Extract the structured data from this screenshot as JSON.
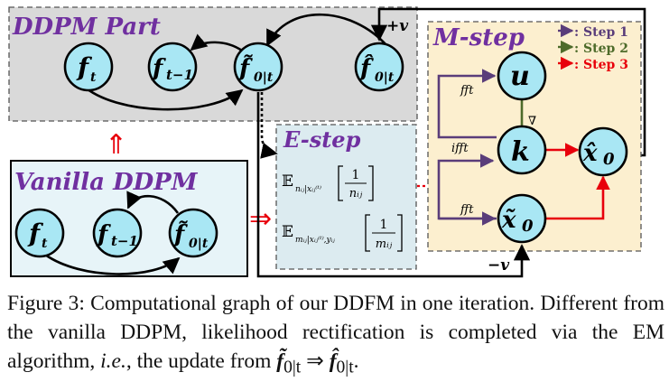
{
  "colors": {
    "node_fill": "#a9e7f4",
    "ddpm_box_fill": "#d9d9d9",
    "vanilla_box_fill": "#e7f4f8",
    "estep_box_fill": "#dcebf0",
    "mstep_box_fill": "#fcefcf",
    "title_purple": "#7030a0",
    "step1_purple": "#5a3d7a",
    "step2_green": "#4d6b2a",
    "step3_red": "#e8000b",
    "implication_red": "#e8000b"
  },
  "boxes": {
    "ddpm_part": "DDPM Part",
    "vanilla_ddpm": "Vanilla DDPM",
    "e_step": "E-step",
    "m_step": "M-step"
  },
  "nodes": {
    "ft": "f",
    "ft_sub": "t",
    "ft1": "f",
    "ft1_sub": "t−1",
    "f0t_tilde": "f̃",
    "f0t_tilde_sub": "0|t",
    "f0t_hat": "f̂",
    "f0t_hat_sub": "0|t",
    "u": "u",
    "k": "k",
    "x0_hat": "x̂",
    "x0_hat_sub": "0",
    "x0_tilde": "x̃",
    "x0_tilde_sub": "0"
  },
  "legend": [
    {
      "label": ": Step 1",
      "color": "#5a3d7a"
    },
    {
      "label": ": Step 2",
      "color": "#4d6b2a"
    },
    {
      "label": ": Step 3",
      "color": "#e8000b"
    }
  ],
  "edge_labels": {
    "plus_v": "+v",
    "minus_v": "−v",
    "fft_u": "fft",
    "ifft_k": "ifft",
    "fft_x0": "fft",
    "nabla": "∇"
  },
  "e_step_exprs": {
    "e1_E": "𝔼",
    "e1_sub": "nᵢⱼ|xᵢⱼ⁽ᵗ⁾",
    "e1_num": "1",
    "e1_den": "nᵢⱼ",
    "e2_E": "𝔼",
    "e2_sub": "mᵢⱼ|xᵢⱼ⁽ᵗ⁾,yᵢⱼ",
    "e2_num": "1",
    "e2_den": "mᵢⱼ"
  },
  "implication_arrows": [
    "⇑",
    "⇒"
  ],
  "caption": {
    "part1": "Figure 3: Computational graph of our DDFM in one iteration. Different from the vanilla DDPM, likelihood rectification is completed via the EM algorithm, ",
    "ie": "i.e.",
    "part2": ", the update from ",
    "from_sym": "f̃",
    "from_sub": "0|t",
    "arrow": " ⇒ ",
    "to_sym": "f̂",
    "to_sub": "0|t",
    "end": "."
  }
}
